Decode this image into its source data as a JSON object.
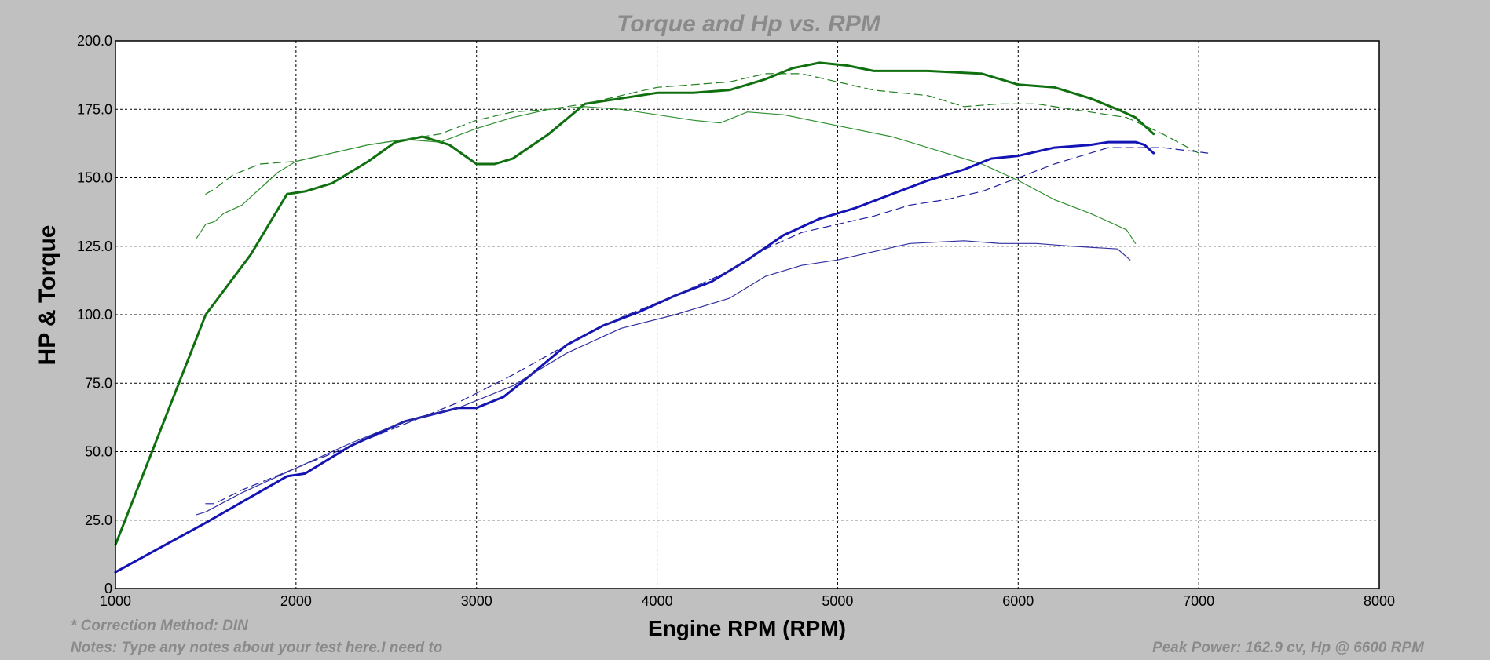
{
  "chart_data": {
    "type": "line",
    "title": "Torque and Hp vs. RPM",
    "xlabel": "Engine RPM (RPM)",
    "ylabel": "HP & Torque",
    "xlim": [
      1000,
      8000
    ],
    "ylim": [
      0,
      200
    ],
    "x_ticks": [
      "1000",
      "2000",
      "3000",
      "4000",
      "5000",
      "6000",
      "7000",
      "8000"
    ],
    "y_ticks": [
      "0",
      "25.0",
      "50.0",
      "75.0",
      "100.0",
      "125.0",
      "150.0",
      "175.0",
      "200.0"
    ],
    "grid": true,
    "series": [
      {
        "color": "#107010",
        "width": 3,
        "dash": "",
        "points": [
          [
            1000,
            16
          ],
          [
            1250,
            58
          ],
          [
            1500,
            100
          ],
          [
            1750,
            122
          ],
          [
            1950,
            144
          ],
          [
            2050,
            145
          ],
          [
            2200,
            148
          ],
          [
            2400,
            156
          ],
          [
            2550,
            163
          ],
          [
            2700,
            165
          ],
          [
            2850,
            162
          ],
          [
            3000,
            155
          ],
          [
            3100,
            155
          ],
          [
            3200,
            157
          ],
          [
            3400,
            166
          ],
          [
            3600,
            177
          ],
          [
            3800,
            179
          ],
          [
            4000,
            181
          ],
          [
            4200,
            181
          ],
          [
            4400,
            182
          ],
          [
            4600,
            186
          ],
          [
            4750,
            190
          ],
          [
            4900,
            192
          ],
          [
            5050,
            191
          ],
          [
            5200,
            189
          ],
          [
            5500,
            189
          ],
          [
            5800,
            188
          ],
          [
            6000,
            184
          ],
          [
            6200,
            183
          ],
          [
            6400,
            179
          ],
          [
            6550,
            175
          ],
          [
            6650,
            172
          ],
          [
            6750,
            166
          ]
        ]
      },
      {
        "color": "#208020",
        "width": 1.2,
        "dash": "10 6",
        "points": [
          [
            1500,
            144
          ],
          [
            1550,
            146
          ],
          [
            1650,
            151
          ],
          [
            1800,
            155
          ],
          [
            2000,
            156
          ],
          [
            2200,
            159
          ],
          [
            2400,
            162
          ],
          [
            2600,
            164
          ],
          [
            2800,
            166
          ],
          [
            3000,
            171
          ],
          [
            3200,
            174
          ],
          [
            3400,
            175
          ],
          [
            3600,
            177
          ],
          [
            3800,
            180
          ],
          [
            4000,
            183
          ],
          [
            4200,
            184
          ],
          [
            4400,
            185
          ],
          [
            4600,
            188
          ],
          [
            4800,
            188
          ],
          [
            5000,
            185
          ],
          [
            5200,
            182
          ],
          [
            5500,
            180
          ],
          [
            5700,
            176
          ],
          [
            5900,
            177
          ],
          [
            6100,
            177
          ],
          [
            6300,
            175
          ],
          [
            6600,
            172
          ],
          [
            6800,
            166
          ],
          [
            7000,
            159
          ]
        ]
      },
      {
        "color": "#309030",
        "width": 1.2,
        "dash": "",
        "points": [
          [
            1450,
            128
          ],
          [
            1500,
            133
          ],
          [
            1550,
            134
          ],
          [
            1600,
            137
          ],
          [
            1700,
            140
          ],
          [
            1800,
            146
          ],
          [
            1900,
            152
          ],
          [
            2000,
            156
          ],
          [
            2200,
            159
          ],
          [
            2400,
            162
          ],
          [
            2600,
            164
          ],
          [
            2800,
            163
          ],
          [
            3000,
            168
          ],
          [
            3200,
            172
          ],
          [
            3400,
            175
          ],
          [
            3600,
            176
          ],
          [
            3800,
            175
          ],
          [
            4000,
            173
          ],
          [
            4200,
            171
          ],
          [
            4350,
            170
          ],
          [
            4500,
            174
          ],
          [
            4700,
            173
          ],
          [
            5000,
            169
          ],
          [
            5300,
            165
          ],
          [
            5600,
            159
          ],
          [
            5800,
            155
          ],
          [
            6000,
            149
          ],
          [
            6200,
            142
          ],
          [
            6400,
            137
          ],
          [
            6600,
            131
          ],
          [
            6650,
            126
          ]
        ]
      },
      {
        "color": "#1414b4",
        "width": 3,
        "dash": "",
        "points": [
          [
            1000,
            6
          ],
          [
            1500,
            24
          ],
          [
            1950,
            41
          ],
          [
            2050,
            42
          ],
          [
            2300,
            52
          ],
          [
            2600,
            61
          ],
          [
            2900,
            66
          ],
          [
            3000,
            66
          ],
          [
            3150,
            70
          ],
          [
            3300,
            78
          ],
          [
            3500,
            89
          ],
          [
            3700,
            96
          ],
          [
            3900,
            101
          ],
          [
            4100,
            107
          ],
          [
            4300,
            112
          ],
          [
            4500,
            120
          ],
          [
            4700,
            129
          ],
          [
            4900,
            135
          ],
          [
            5100,
            139
          ],
          [
            5300,
            144
          ],
          [
            5500,
            149
          ],
          [
            5700,
            153
          ],
          [
            5850,
            157
          ],
          [
            6000,
            158
          ],
          [
            6200,
            161
          ],
          [
            6400,
            162
          ],
          [
            6500,
            163
          ],
          [
            6650,
            163
          ],
          [
            6700,
            162
          ],
          [
            6750,
            159
          ]
        ]
      },
      {
        "color": "#2020a0",
        "width": 1.2,
        "dash": "10 6",
        "points": [
          [
            1500,
            31
          ],
          [
            1550,
            31
          ],
          [
            1700,
            36
          ],
          [
            2000,
            44
          ],
          [
            2300,
            52
          ],
          [
            2600,
            60
          ],
          [
            2900,
            68
          ],
          [
            3200,
            78
          ],
          [
            3500,
            89
          ],
          [
            3800,
            99
          ],
          [
            4100,
            107
          ],
          [
            4400,
            116
          ],
          [
            4600,
            124
          ],
          [
            4800,
            130
          ],
          [
            5000,
            133
          ],
          [
            5200,
            136
          ],
          [
            5400,
            140
          ],
          [
            5600,
            142
          ],
          [
            5800,
            145
          ],
          [
            6000,
            150
          ],
          [
            6200,
            155
          ],
          [
            6500,
            161
          ],
          [
            6800,
            161
          ],
          [
            7050,
            159
          ]
        ]
      },
      {
        "color": "#3030a0",
        "width": 1.2,
        "dash": "",
        "points": [
          [
            1450,
            27
          ],
          [
            1500,
            28
          ],
          [
            1700,
            35
          ],
          [
            2000,
            44
          ],
          [
            2300,
            53
          ],
          [
            2600,
            61
          ],
          [
            2900,
            66
          ],
          [
            3200,
            74
          ],
          [
            3500,
            86
          ],
          [
            3800,
            95
          ],
          [
            4100,
            100
          ],
          [
            4400,
            106
          ],
          [
            4600,
            114
          ],
          [
            4800,
            118
          ],
          [
            5000,
            120
          ],
          [
            5200,
            123
          ],
          [
            5400,
            126
          ],
          [
            5700,
            127
          ],
          [
            5900,
            126
          ],
          [
            6100,
            126
          ],
          [
            6300,
            125
          ],
          [
            6550,
            124
          ],
          [
            6620,
            120
          ]
        ]
      }
    ]
  },
  "footer": {
    "correction": "* Correction Method: DIN",
    "notes": "Notes: Type any notes about your test here.I need to",
    "peak_power": "Peak Power: 162.9 cv, Hp @ 6600 RPM"
  }
}
